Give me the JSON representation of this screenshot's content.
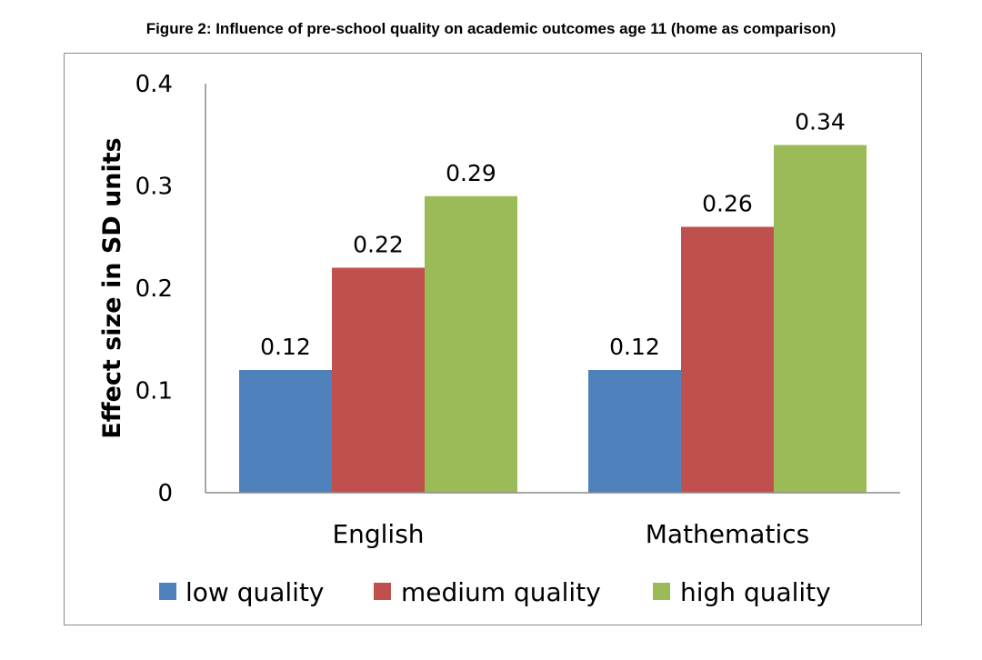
{
  "chart_data": {
    "type": "bar",
    "title": "Figure 2: Influence of pre-school quality on academic outcomes age 11 (home as comparison)",
    "xlabel": "",
    "ylabel": "Effect size in SD units",
    "categories": [
      "English",
      "Mathematics"
    ],
    "series": [
      {
        "name": "low quality",
        "values": [
          0.12,
          0.12
        ],
        "color": "#4f81bd"
      },
      {
        "name": "medium quality",
        "values": [
          0.22,
          0.26
        ],
        "color": "#c0504d"
      },
      {
        "name": "high quality",
        "values": [
          0.29,
          0.34
        ],
        "color": "#9bbb59"
      }
    ],
    "ylim": [
      0,
      0.4
    ],
    "yticks": [
      0,
      0.1,
      0.2,
      0.3,
      0.4
    ],
    "ytick_labels": [
      "0",
      "0.1",
      "0.2",
      "0.3",
      "0.4"
    ],
    "data_labels": [
      [
        "0.12",
        "0.12"
      ],
      [
        "0.22",
        "0.26"
      ],
      [
        "0.29",
        "0.34"
      ]
    ],
    "grid": false,
    "legend_position": "bottom"
  }
}
